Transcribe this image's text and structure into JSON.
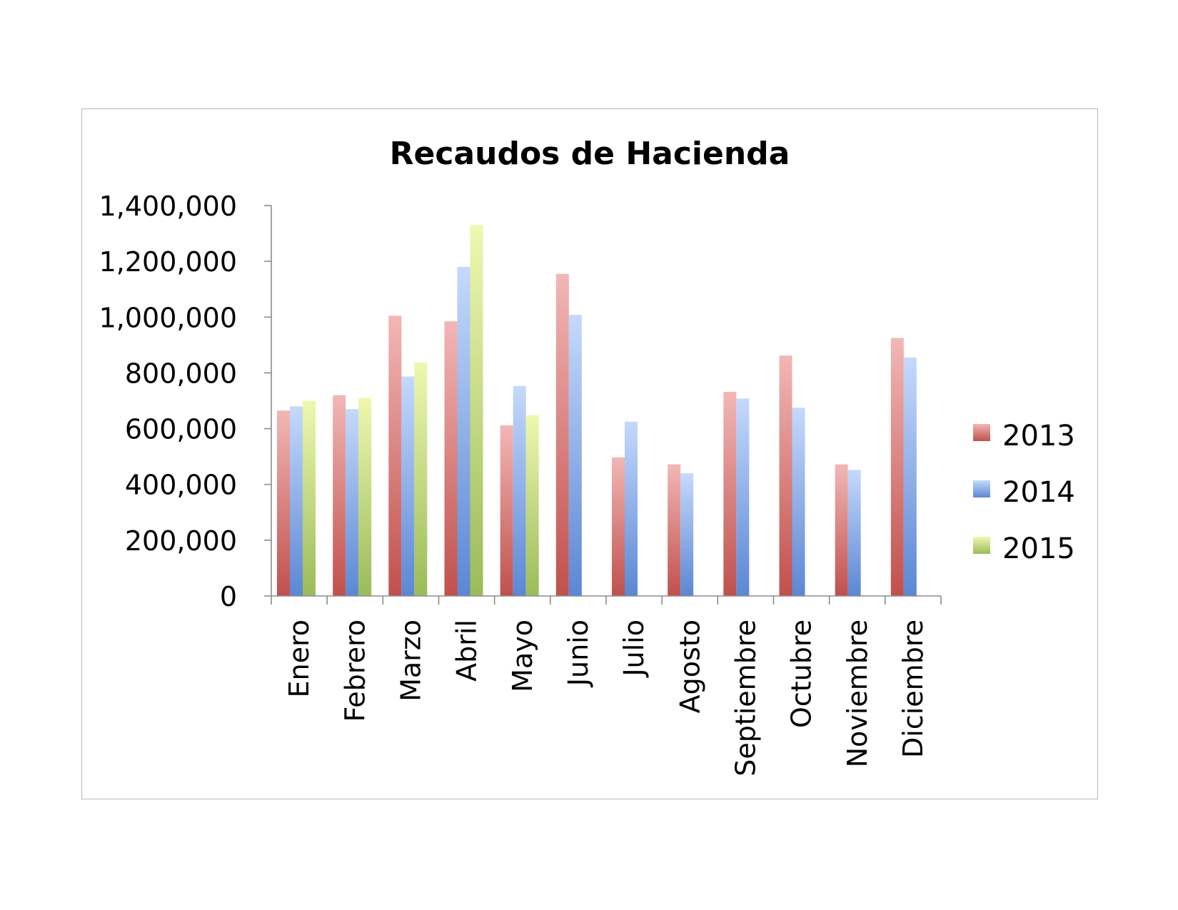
{
  "chart_data": {
    "type": "bar",
    "title": "Recaudos de Hacienda",
    "xlabel": "",
    "ylabel": "",
    "ylim": [
      0,
      1400000
    ],
    "yticks": [
      0,
      200000,
      400000,
      600000,
      800000,
      1000000,
      1200000,
      1400000
    ],
    "ytick_labels": [
      "0",
      "200,000",
      "400,000",
      "600,000",
      "800,000",
      "1,000,000",
      "1,200,000",
      "1,400,000"
    ],
    "grid": false,
    "legend_position": "right",
    "categories": [
      "Enero",
      "Febrero",
      "Marzo",
      "Abril",
      "Mayo",
      "Junio",
      "Julio",
      "Agosto",
      "Septiembre",
      "Octubre",
      "Noviembre",
      "Diciembre"
    ],
    "series": [
      {
        "name": "2013",
        "color": "#c0504d",
        "color_light": "#f2b7b5",
        "values": [
          665000,
          720000,
          1005000,
          985000,
          612000,
          1155000,
          497000,
          472000,
          732000,
          862000,
          472000,
          925000
        ]
      },
      {
        "name": "2014",
        "color": "#5b87d4",
        "color_light": "#c5d9fb",
        "values": [
          680000,
          670000,
          787000,
          1180000,
          753000,
          1008000,
          625000,
          440000,
          708000,
          675000,
          452000,
          855000
        ]
      },
      {
        "name": "2015",
        "color": "#9bbb59",
        "color_light": "#eef8b0",
        "values": [
          700000,
          710000,
          837000,
          1330000,
          648000,
          null,
          null,
          null,
          null,
          null,
          null,
          null
        ]
      }
    ]
  }
}
